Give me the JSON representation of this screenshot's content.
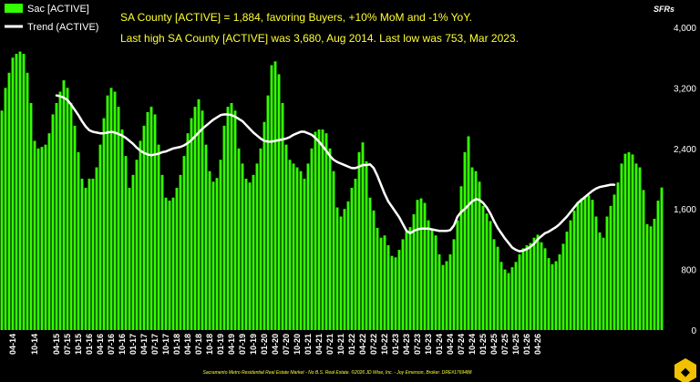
{
  "headline_line1": "SA County [ACTIVE] = 1,884, favoring Buyers, +10% MoM and -1% YoY.",
  "headline_line2": "Last high SA County [ACTIVE] was 3,680, Aug 2014. Last low was 753, Mar 2023.",
  "footer": "Sacramento Metro Residential Real Estate Market - No B.S. Real Estate. ©2026 JD Wise, Inc. - Joy Emerson, Broker. DRE#1769488",
  "colors": {
    "bar": "#33ff00",
    "trend": "#ffffff",
    "background": "#000000",
    "headline": "#ffff33",
    "logo": "#f2c200"
  },
  "logo_icon": "gold-badge-logo-icon",
  "chart_data": {
    "type": "bar",
    "y_unit_label": "SFRs",
    "ylim": [
      0,
      4000
    ],
    "yticks": [
      "0",
      "800",
      "1,600",
      "2,400",
      "3,200",
      "4,000"
    ],
    "ytick_values": [
      0,
      800,
      1600,
      2400,
      3200,
      4000
    ],
    "legend_placement": "top-left",
    "grid": false,
    "start_month": "2014-01",
    "x_tick_labels": [
      "04-14",
      "10-14",
      "04-15",
      "07-15",
      "10-15",
      "01-16",
      "04-16",
      "07-16",
      "10-16",
      "01-17",
      "04-17",
      "07-17",
      "10-17",
      "01-18",
      "04-18",
      "07-18",
      "10-18",
      "01-19",
      "04-19",
      "07-19",
      "10-19",
      "01-20",
      "04-20",
      "07-20",
      "10-20",
      "01-21",
      "04-21",
      "07-21",
      "10-21",
      "01-22",
      "04-22",
      "07-22",
      "10-22",
      "01-23",
      "04-23",
      "07-23",
      "10-23",
      "01-24",
      "04-24",
      "07-24",
      "10-24",
      "01-25",
      "04-25",
      "07-25",
      "10-25",
      "01-26",
      "04-26"
    ],
    "series": [
      {
        "name": "Sac [ACTIVE]",
        "values": [
          2900,
          3200,
          3400,
          3600,
          3650,
          3680,
          3650,
          3400,
          3000,
          2500,
          2400,
          2420,
          2450,
          2600,
          2850,
          3000,
          3150,
          3300,
          3200,
          3000,
          2700,
          2350,
          2000,
          1880,
          2000,
          2000,
          2150,
          2450,
          2800,
          3100,
          3200,
          3150,
          2950,
          2650,
          2300,
          1880,
          2050,
          2250,
          2500,
          2700,
          2880,
          2950,
          2850,
          2450,
          2050,
          1750,
          1710,
          1750,
          1880,
          2050,
          2300,
          2600,
          2800,
          2950,
          3050,
          2900,
          2450,
          2100,
          1960,
          2010,
          2250,
          2700,
          2950,
          3000,
          2900,
          2400,
          2200,
          2000,
          1950,
          2050,
          2200,
          2400,
          2750,
          3100,
          3500,
          3550,
          3380,
          3000,
          2450,
          2250,
          2200,
          2150,
          2100,
          2000,
          2200,
          2400,
          2620,
          2650,
          2650,
          2600,
          2400,
          2100,
          1620,
          1500,
          1600,
          1700,
          1880,
          2000,
          2350,
          2480,
          2230,
          1750,
          1580,
          1350,
          1220,
          1250,
          1120,
          980,
          960,
          1060,
          1200,
          1300,
          1360,
          1530,
          1720,
          1740,
          1680,
          1450,
          1340,
          1250,
          1000,
          860,
          910,
          1000,
          1200,
          1450,
          1900,
          2350,
          2560,
          2150,
          2100,
          1960,
          1640,
          1540,
          1440,
          1200,
          1100,
          900,
          800,
          753,
          830,
          900,
          1000,
          1080,
          1120,
          1150,
          1220,
          1260,
          1160,
          1080,
          950,
          870,
          910,
          1000,
          1140,
          1300,
          1450,
          1580,
          1690,
          1740,
          1770,
          1780,
          1720,
          1500,
          1290,
          1220,
          1500,
          1640,
          1790,
          1950,
          2200,
          2330,
          2350,
          2320,
          2200,
          2150,
          1850,
          1400,
          1370,
          1470,
          1710,
          1884
        ]
      },
      {
        "name": "Trend (ACTIVE)",
        "values": [
          null,
          null,
          null,
          null,
          null,
          null,
          null,
          null,
          null,
          null,
          null,
          null,
          null,
          null,
          null,
          3100,
          3090,
          3070,
          3040,
          2980,
          2910,
          2840,
          2760,
          2690,
          2640,
          2620,
          2610,
          2600,
          2600,
          2610,
          2620,
          2610,
          2590,
          2570,
          2540,
          2500,
          2460,
          2410,
          2370,
          2340,
          2320,
          2310,
          2320,
          2330,
          2350,
          2360,
          2380,
          2400,
          2410,
          2420,
          2440,
          2470,
          2510,
          2560,
          2610,
          2660,
          2700,
          2740,
          2780,
          2810,
          2840,
          2850,
          2850,
          2840,
          2820,
          2790,
          2760,
          2710,
          2660,
          2610,
          2570,
          2530,
          2500,
          2490,
          2490,
          2500,
          2510,
          2520,
          2530,
          2550,
          2580,
          2600,
          2620,
          2620,
          2600,
          2580,
          2540,
          2490,
          2430,
          2370,
          2300,
          2250,
          2220,
          2200,
          2180,
          2160,
          2140,
          2140,
          2160,
          2180,
          2180,
          2190,
          2140,
          2040,
          1920,
          1800,
          1700,
          1630,
          1560,
          1490,
          1400,
          1310,
          1280,
          1310,
          1330,
          1340,
          1340,
          1340,
          1330,
          1320,
          1310,
          1310,
          1310,
          1320,
          1380,
          1500,
          1560,
          1600,
          1650,
          1700,
          1730,
          1720,
          1680,
          1620,
          1540,
          1440,
          1350,
          1280,
          1210,
          1150,
          1090,
          1060,
          1040,
          1050,
          1070,
          1100,
          1140,
          1200,
          1240,
          1280,
          1300,
          1330,
          1360,
          1400,
          1450,
          1500,
          1560,
          1620,
          1680,
          1720,
          1760,
          1800,
          1840,
          1870,
          1890,
          1900,
          1910,
          1920,
          1920
        ]
      }
    ]
  }
}
